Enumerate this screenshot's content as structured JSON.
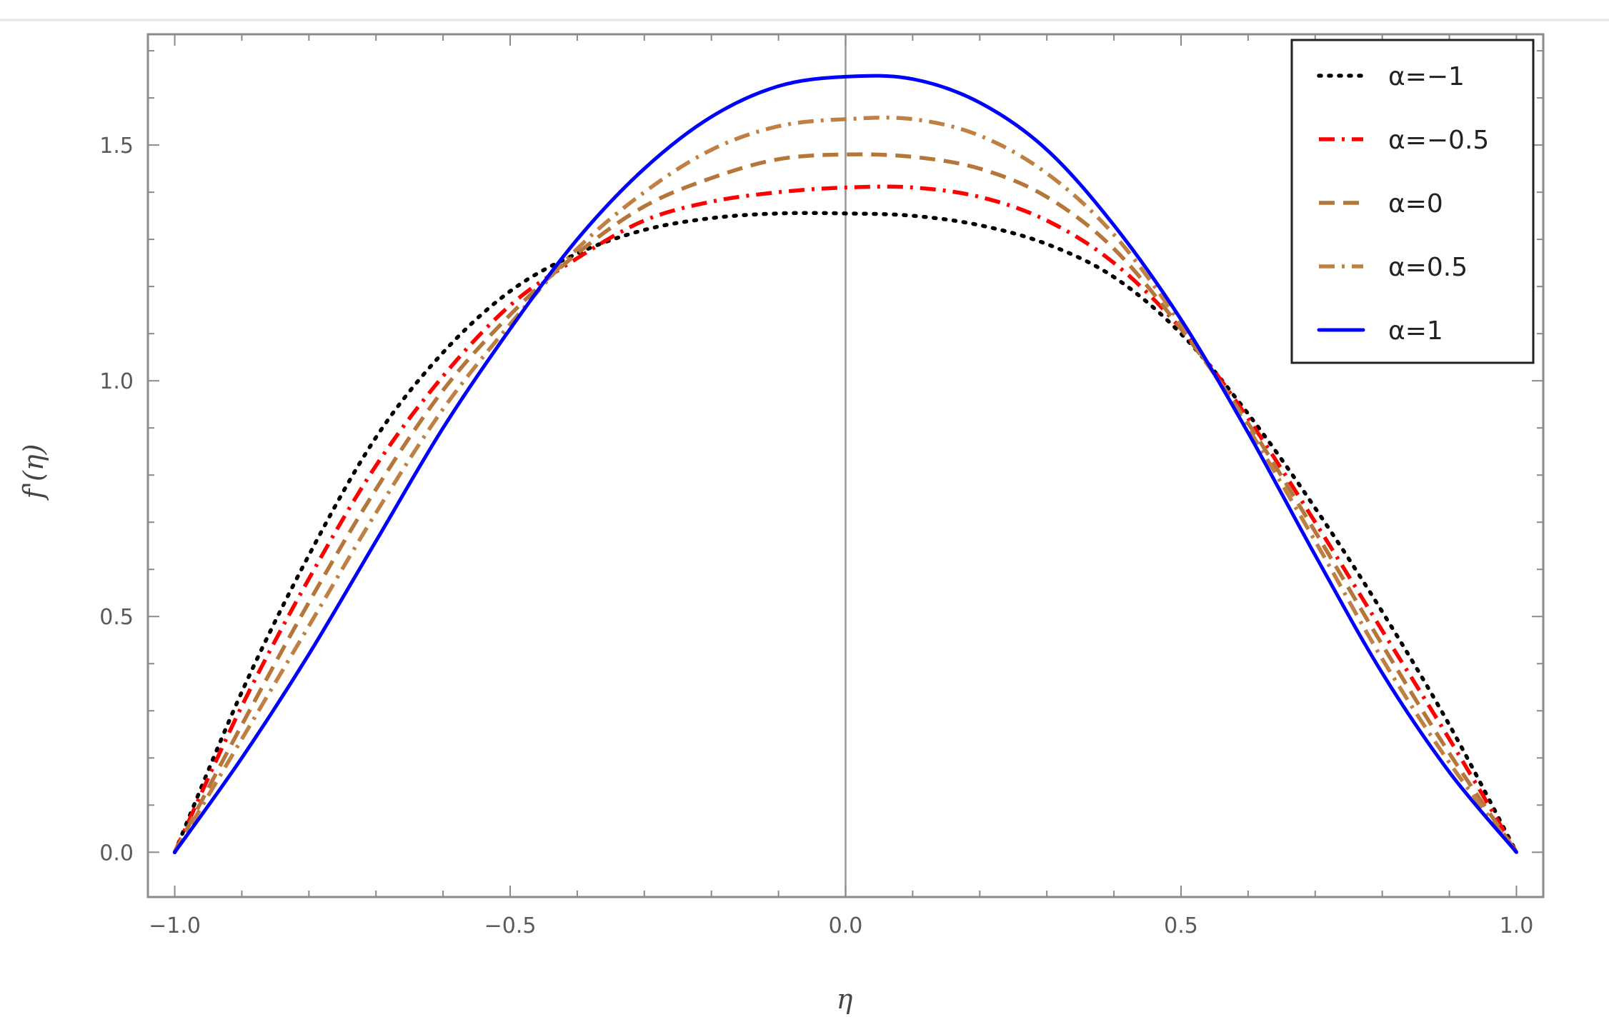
{
  "chart_data": {
    "type": "line",
    "xlabel": "η",
    "ylabel": "f'(η)",
    "xlim": [
      -1.04,
      1.04
    ],
    "ylim": [
      -0.095,
      1.735
    ],
    "x_ticks": [
      -1.0,
      -0.5,
      0.0,
      0.5,
      1.0
    ],
    "x_tick_labels": [
      "−1.0",
      "−0.5",
      "0.0",
      "0.5",
      "1.0"
    ],
    "y_ticks": [
      0.0,
      0.5,
      1.0,
      1.5
    ],
    "y_tick_labels": [
      "0.0",
      "0.5",
      "1.0",
      "1.5"
    ],
    "grid": false,
    "legend_position": "top-right",
    "x": [
      -1.0,
      -0.9,
      -0.8,
      -0.7,
      -0.6,
      -0.5,
      -0.4,
      -0.3,
      -0.2,
      -0.1,
      0.0,
      0.1,
      0.2,
      0.3,
      0.4,
      0.5,
      0.6,
      0.7,
      0.8,
      0.9,
      1.0
    ],
    "series": [
      {
        "name": "α=−1",
        "color": "#000000",
        "style": "dotted",
        "values": [
          0.0,
          0.34,
          0.63,
          0.88,
          1.06,
          1.19,
          1.27,
          1.32,
          1.345,
          1.355,
          1.355,
          1.35,
          1.33,
          1.29,
          1.22,
          1.1,
          0.93,
          0.73,
          0.51,
          0.27,
          0.0
        ]
      },
      {
        "name": "α=−0.5",
        "color": "#ff0000",
        "style": "dashdot",
        "values": [
          0.0,
          0.31,
          0.58,
          0.82,
          1.01,
          1.16,
          1.26,
          1.34,
          1.38,
          1.4,
          1.41,
          1.41,
          1.39,
          1.34,
          1.25,
          1.11,
          0.92,
          0.7,
          0.47,
          0.24,
          0.0
        ]
      },
      {
        "name": "α=0",
        "color": "#b5763a",
        "style": "dashed",
        "values": [
          0.0,
          0.27,
          0.53,
          0.77,
          0.98,
          1.14,
          1.27,
          1.37,
          1.43,
          1.47,
          1.48,
          1.475,
          1.45,
          1.39,
          1.28,
          1.11,
          0.91,
          0.68,
          0.44,
          0.21,
          0.0
        ]
      },
      {
        "name": "α=0.5",
        "color": "#c08044",
        "style": "dashdot",
        "values": [
          0.0,
          0.24,
          0.48,
          0.72,
          0.94,
          1.12,
          1.28,
          1.4,
          1.49,
          1.54,
          1.555,
          1.555,
          1.52,
          1.44,
          1.31,
          1.12,
          0.9,
          0.66,
          0.41,
          0.19,
          0.0
        ]
      },
      {
        "name": "α=1",
        "color": "#0000ff",
        "style": "solid",
        "values": [
          0.0,
          0.2,
          0.42,
          0.66,
          0.9,
          1.11,
          1.3,
          1.45,
          1.56,
          1.625,
          1.645,
          1.64,
          1.59,
          1.49,
          1.33,
          1.13,
          0.89,
          0.63,
          0.38,
          0.17,
          0.0
        ]
      }
    ]
  }
}
